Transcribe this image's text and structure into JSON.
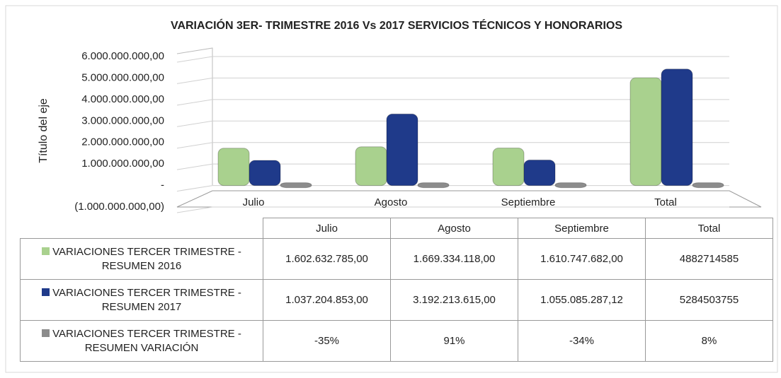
{
  "chart_data": {
    "type": "bar",
    "title": "VARIACIÓN 3ER- TRIMESTRE 2016 Vs 2017 SERVICIOS TÉCNICOS Y HONORARIOS",
    "y_axis_label": "Título del eje",
    "categories": [
      "Julio",
      "Agosto",
      "Septiembre",
      "Total"
    ],
    "series": [
      {
        "name": "VARIACIONES TERCER TRIMESTRE - RESUMEN 2016",
        "color": "#a9d18e",
        "values": [
          1602632785,
          1669334118,
          1610747682,
          4882714585
        ],
        "value_labels": [
          "1.602.632.785,00",
          "1.669.334.118,00",
          "1.610.747.682,00",
          "4882714585"
        ]
      },
      {
        "name": "VARIACIONES TERCER TRIMESTRE - RESUMEN 2017",
        "color": "#1f3a8a",
        "values": [
          1037204853,
          3192213615,
          1055085287.12,
          5284503755
        ],
        "value_labels": [
          "1.037.204.853,00",
          "3.192.213.615,00",
          "1.055.085.287,12",
          "5284503755"
        ]
      },
      {
        "name": "VARIACIONES TERCER TRIMESTRE - RESUMEN VARIACIÓN",
        "color": "#8c8c8c",
        "values": [
          -0.35,
          0.91,
          -0.34,
          0.08
        ],
        "value_labels": [
          "-35%",
          "91%",
          "-34%",
          "8%"
        ]
      }
    ],
    "ylim": [
      -1000000000,
      6000000000
    ],
    "yticks": [
      {
        "value": -1000000000,
        "label": "(1.000.000.000,00)"
      },
      {
        "value": 0,
        "label": "-"
      },
      {
        "value": 1000000000,
        "label": "1.000.000.000,00"
      },
      {
        "value": 2000000000,
        "label": "2.000.000.000,00"
      },
      {
        "value": 3000000000,
        "label": "3.000.000.000,00"
      },
      {
        "value": 4000000000,
        "label": "4.000.000.000,00"
      },
      {
        "value": 5000000000,
        "label": "5.000.000.000,00"
      },
      {
        "value": 6000000000,
        "label": "6.000.000.000,00"
      }
    ],
    "grid": true
  }
}
